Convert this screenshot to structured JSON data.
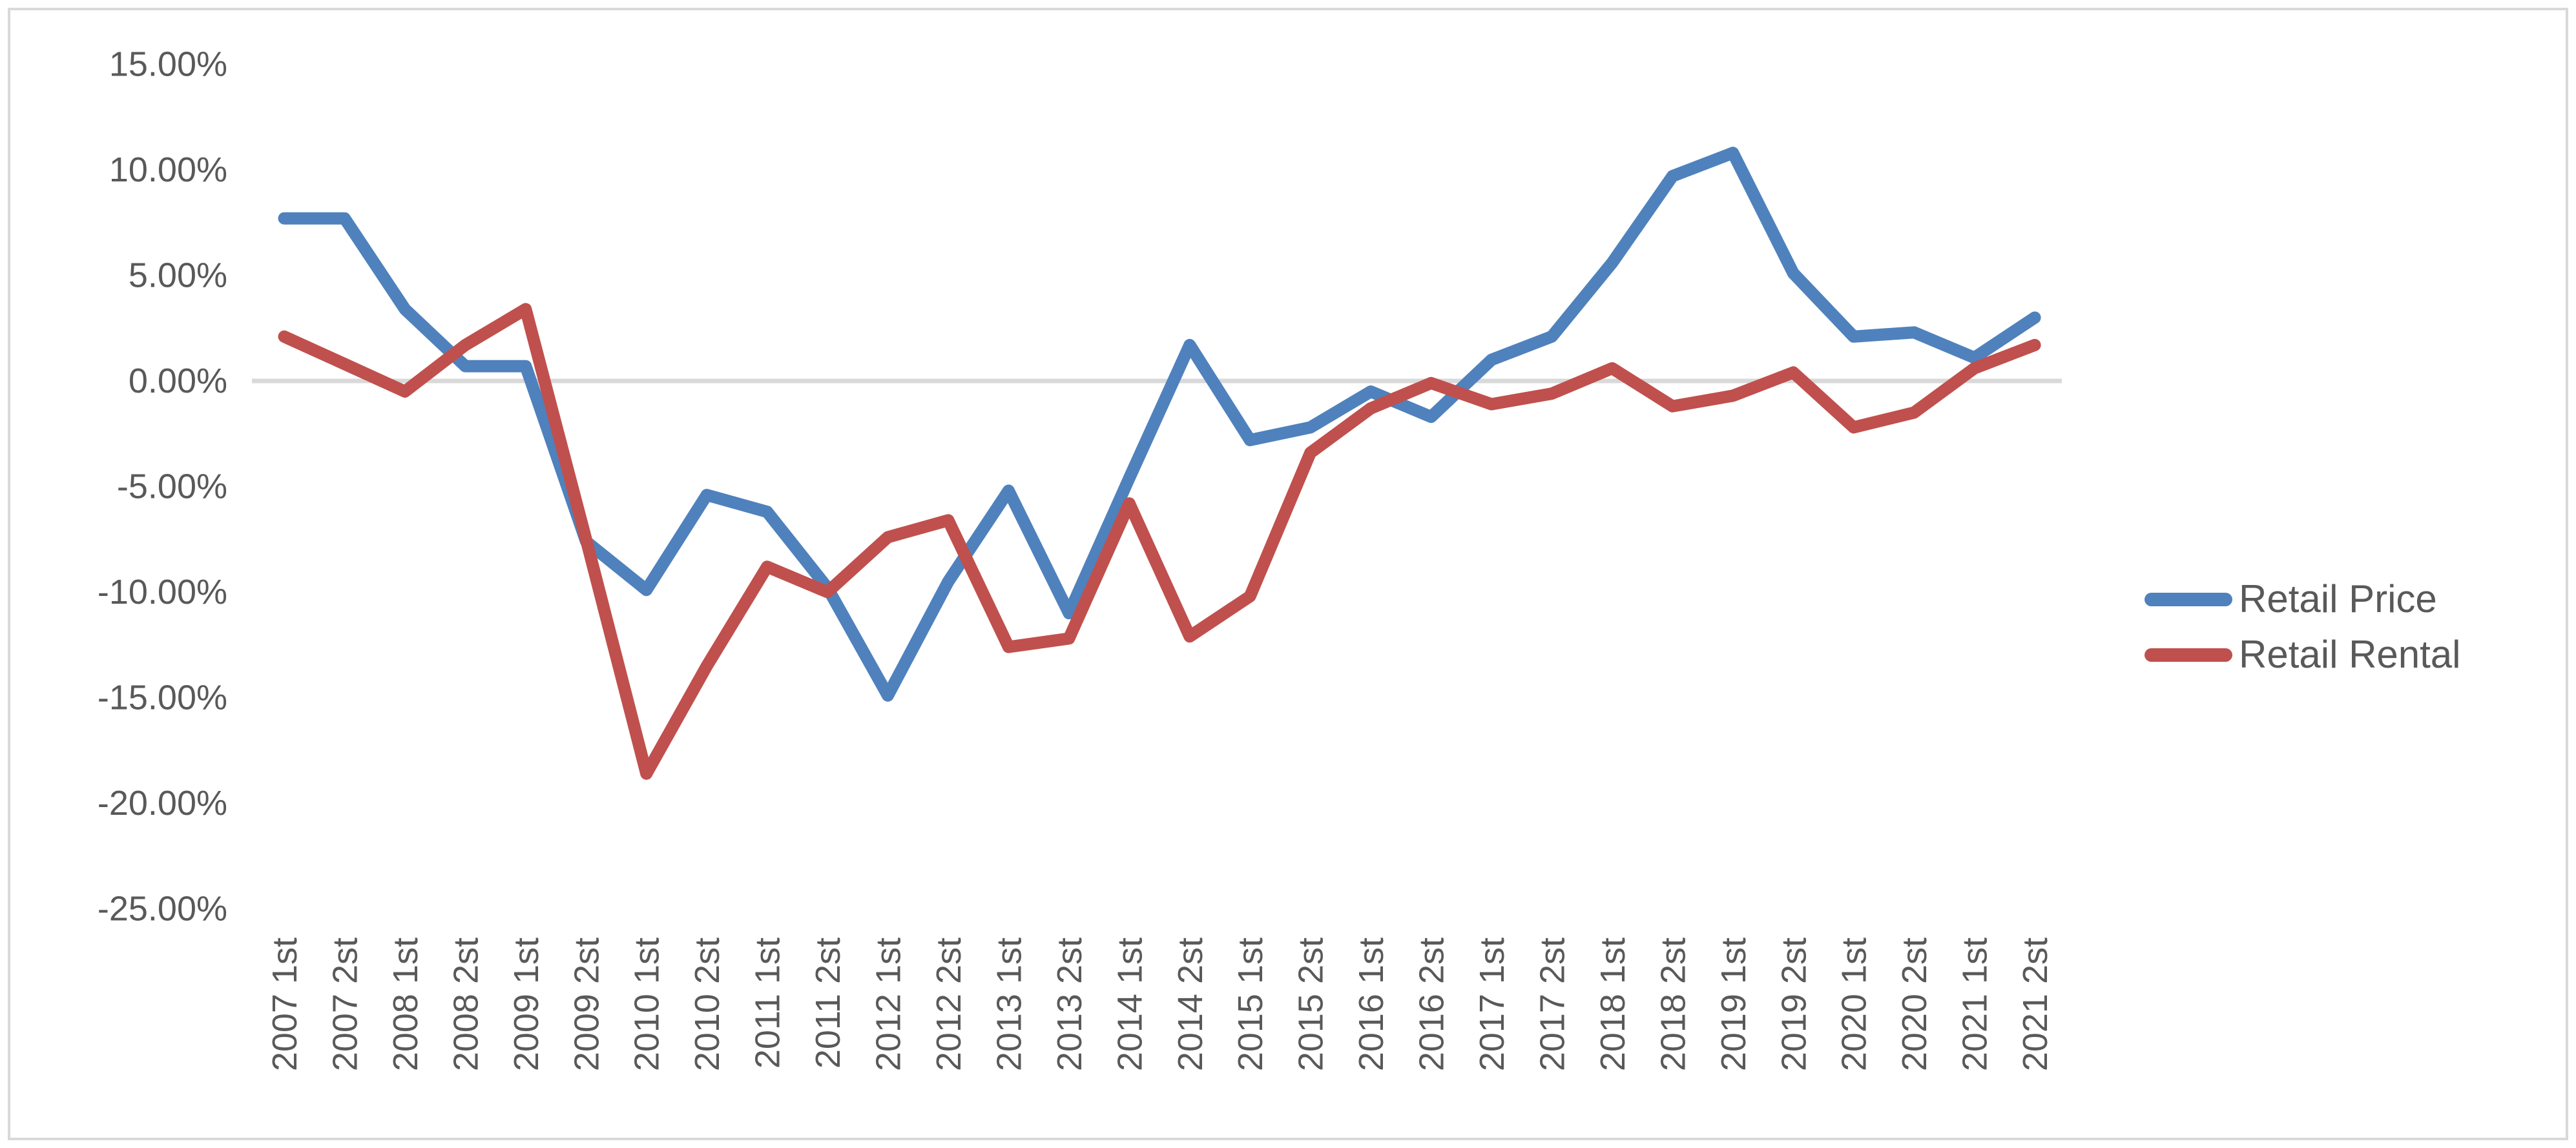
{
  "window": {
    "background": "#FFFFFF",
    "frame_border_color": "#D9D9D9"
  },
  "chart_data": {
    "type": "line",
    "title": "",
    "xlabel": "",
    "ylabel": "",
    "categories": [
      "2007 1st",
      "2007 2st",
      "2008 1st",
      "2008 2st",
      "2009 1st",
      "2009 2st",
      "2010 1st",
      "2010 2st",
      "2011 1st",
      "2011 2st",
      "2012 1st",
      "2012 2st",
      "2013 1st",
      "2013 2st",
      "2014 1st",
      "2014 2st",
      "2015 1st",
      "2015 2st",
      "2016 1st",
      "2016 2st",
      "2017 1st",
      "2017 2st",
      "2018 1st",
      "2018 2st",
      "2019 1st",
      "2019 2st",
      "2020 1st",
      "2020 2st",
      "2021 1st",
      "2021 2st"
    ],
    "series": [
      {
        "name": "Retail Price",
        "color": "#4F81BD",
        "values": [
          7.7,
          7.7,
          3.4,
          0.7,
          0.7,
          -7.6,
          -9.9,
          -5.4,
          -6.2,
          -9.8,
          -14.9,
          -9.5,
          -5.2,
          -11.0,
          -4.6,
          1.7,
          -2.8,
          -2.2,
          -0.5,
          -1.7,
          1.0,
          2.1,
          5.6,
          9.7,
          10.8,
          5.1,
          2.1,
          2.3,
          1.1,
          3.0
        ]
      },
      {
        "name": "Retail Rental",
        "color": "#C0504D",
        "values": [
          2.1,
          0.8,
          -0.5,
          1.7,
          3.4,
          -7.5,
          -18.6,
          -13.5,
          -8.8,
          -10.0,
          -7.4,
          -6.6,
          -12.6,
          -12.2,
          -5.8,
          -12.1,
          -10.2,
          -3.4,
          -1.3,
          -0.1,
          -1.1,
          -0.6,
          0.6,
          -1.2,
          -0.7,
          0.4,
          -2.2,
          -1.5,
          0.6,
          1.7
        ]
      }
    ],
    "ylim": [
      -25,
      15
    ],
    "y_ticks": [
      {
        "value": 15,
        "label": "15.00%"
      },
      {
        "value": 10,
        "label": "10.00%"
      },
      {
        "value": 5,
        "label": "5.00%"
      },
      {
        "value": 0,
        "label": "0.00%"
      },
      {
        "value": -5,
        "label": "-5.00%"
      },
      {
        "value": -10,
        "label": "-10.00%"
      },
      {
        "value": -15,
        "label": "-15.00%"
      },
      {
        "value": -20,
        "label": "-20.00%"
      },
      {
        "value": -25,
        "label": "-25.00%"
      }
    ],
    "gridlines": {
      "zero_line_only": true,
      "color": "#D9D9D9"
    },
    "legend_position": "right",
    "axis_text_color": "#595959"
  }
}
